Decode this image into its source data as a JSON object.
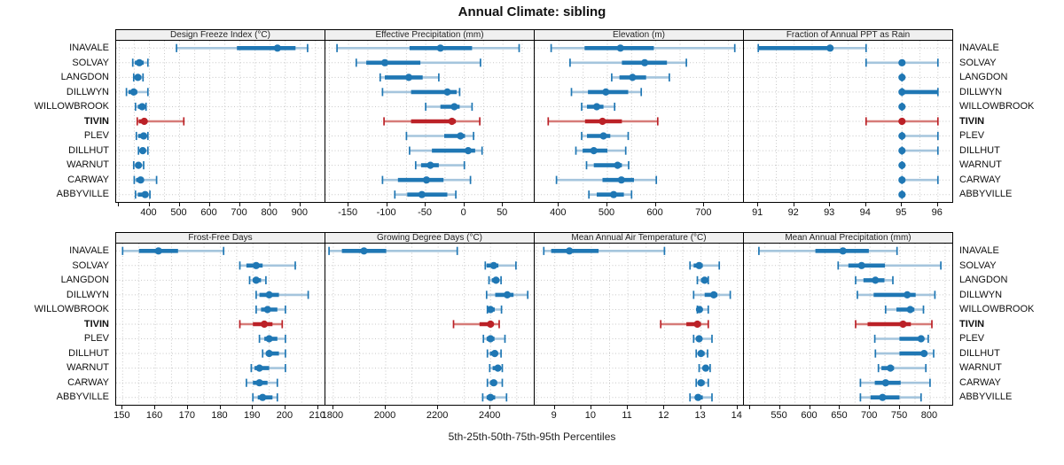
{
  "title": "Annual Climate: sibling",
  "caption": "5th-25th-50th-75th-95th Percentiles",
  "highlight_site": "TIVIN",
  "sites": [
    "INAVALE",
    "SOLVAY",
    "LANGDON",
    "DILLWYN",
    "WILLOWBROOK",
    "TIVIN",
    "PLEV",
    "DILLHUT",
    "WARNUT",
    "CARWAY",
    "ABBYVILLE"
  ],
  "colors": {
    "blue": "#1f77b4",
    "blue_light": "#a5c5dd",
    "red": "#bb2127",
    "red_light": "#d67b78",
    "grid": "#c8c8c8",
    "header_bg": "#f0f0f0",
    "border": "#000000"
  },
  "chart_data": [
    {
      "type": "dot-whisker",
      "panel": "Design Freeze Index (°C)",
      "percentiles": [
        5,
        25,
        50,
        75,
        95
      ],
      "xlim": [
        290,
        980
      ],
      "tick_step": 100,
      "minor_step": 50,
      "labeled_ticks": [
        400,
        500,
        600,
        700,
        800,
        900
      ],
      "series": {
        "INAVALE": [
          490,
          690,
          824,
          884,
          924
        ],
        "SOLVAY": [
          345,
          352,
          367,
          381,
          395
        ],
        "LANGDON": [
          348,
          352,
          362,
          373,
          379
        ],
        "DILLWYN": [
          324,
          331,
          348,
          360,
          395
        ],
        "WILLOWBROOK": [
          354,
          362,
          376,
          386,
          389
        ],
        "TIVIN": [
          360,
          365,
          383,
          390,
          514
        ],
        "PLEV": [
          357,
          363,
          381,
          388,
          395
        ],
        "DILLHUT": [
          364,
          369,
          378,
          386,
          395
        ],
        "WARNUT": [
          348,
          353,
          364,
          372,
          381
        ],
        "CARWAY": [
          350,
          356,
          371,
          380,
          424
        ],
        "ABBYVILLE": [
          354,
          362,
          386,
          392,
          402
        ]
      }
    },
    {
      "type": "dot-whisker",
      "panel": "Effective Precipitation (mm)",
      "percentiles": [
        5,
        25,
        50,
        75,
        95
      ],
      "xlim": [
        -180,
        90
      ],
      "tick_step": 50,
      "minor_step": 25,
      "labeled_ticks": [
        -150,
        -100,
        -50,
        0,
        50
      ],
      "series": {
        "INAVALE": [
          -165,
          -71,
          -31,
          10,
          71
        ],
        "SOLVAY": [
          -140,
          -127,
          -103,
          -57,
          21
        ],
        "LANGDON": [
          -109,
          -103,
          -72,
          -54,
          -33
        ],
        "DILLWYN": [
          -106,
          -69,
          -22,
          -10,
          -6
        ],
        "WILLOWBROOK": [
          -50,
          -31,
          -13,
          -6,
          10
        ],
        "TIVIN": [
          -104,
          -69,
          -16,
          -11,
          20
        ],
        "PLEV": [
          -75,
          -26,
          -5,
          1,
          12
        ],
        "DILLHUT": [
          -71,
          -42,
          5,
          14,
          23
        ],
        "WARNUT": [
          -63,
          -56,
          -44,
          -33,
          0
        ],
        "CARWAY": [
          -106,
          -86,
          -49,
          -27,
          8
        ],
        "ABBYVILLE": [
          -90,
          -74,
          -55,
          -22,
          -11
        ]
      }
    },
    {
      "type": "dot-whisker",
      "panel": "Elevation (m)",
      "percentiles": [
        5,
        25,
        50,
        75,
        95
      ],
      "xlim": [
        350,
        780
      ],
      "tick_step": 100,
      "minor_step": 50,
      "labeled_ticks": [
        400,
        500,
        600,
        700
      ],
      "series": {
        "INAVALE": [
          384,
          453,
          527,
          596,
          763
        ],
        "SOLVAY": [
          423,
          530,
          577,
          623,
          663
        ],
        "LANGDON": [
          509,
          525,
          552,
          580,
          628
        ],
        "DILLWYN": [
          426,
          460,
          497,
          543,
          570
        ],
        "WILLOWBROOK": [
          447,
          458,
          478,
          492,
          515
        ],
        "TIVIN": [
          378,
          454,
          490,
          530,
          604
        ],
        "PLEV": [
          447,
          458,
          492,
          506,
          543
        ],
        "DILLHUT": [
          435,
          449,
          472,
          500,
          538
        ],
        "WARNUT": [
          457,
          472,
          521,
          530,
          544
        ],
        "CARWAY": [
          395,
          490,
          529,
          555,
          601
        ],
        "ABBYVILLE": [
          462,
          478,
          513,
          534,
          550
        ]
      }
    },
    {
      "type": "dot-whisker",
      "panel": "Fraction of Annual PPT as Rain",
      "percentiles": [
        5,
        25,
        50,
        75,
        95
      ],
      "xlim": [
        90.6,
        96.4
      ],
      "tick_step": 1,
      "minor_step": 0.5,
      "labeled_ticks": [
        91,
        92,
        93,
        94,
        95,
        96
      ],
      "series": {
        "INAVALE": [
          91,
          91,
          93,
          93,
          94
        ],
        "SOLVAY": [
          94,
          95,
          95,
          95,
          96
        ],
        "LANGDON": [
          95,
          95,
          95,
          95,
          95
        ],
        "DILLWYN": [
          95,
          95,
          95,
          96,
          96
        ],
        "WILLOWBROOK": [
          95,
          95,
          95,
          95,
          95
        ],
        "TIVIN": [
          94,
          95,
          95,
          95,
          96
        ],
        "PLEV": [
          95,
          95,
          95,
          95,
          96
        ],
        "DILLHUT": [
          95,
          95,
          95,
          95,
          96
        ],
        "WARNUT": [
          95,
          95,
          95,
          95,
          95
        ],
        "CARWAY": [
          95,
          95,
          95,
          95,
          96
        ],
        "ABBYVILLE": [
          95,
          95,
          95,
          95,
          95
        ]
      }
    },
    {
      "type": "dot-whisker",
      "panel": "Frost-Free Days",
      "percentiles": [
        5,
        25,
        50,
        75,
        95
      ],
      "xlim": [
        148,
        212
      ],
      "tick_step": 10,
      "minor_step": 5,
      "labeled_ticks": [
        150,
        160,
        170,
        180,
        190,
        200,
        210
      ],
      "series": {
        "INAVALE": [
          150,
          155,
          161,
          167,
          181
        ],
        "SOLVAY": [
          186,
          188,
          191,
          193,
          203
        ],
        "LANGDON": [
          189,
          190,
          191,
          192.5,
          194
        ],
        "DILLWYN": [
          191,
          192,
          195,
          198,
          207
        ],
        "WILLOWBROOK": [
          191,
          192.5,
          194.5,
          197.5,
          200
        ],
        "TIVIN": [
          186,
          190,
          193.5,
          196,
          199
        ],
        "PLEV": [
          192,
          193.5,
          195,
          197.5,
          200
        ],
        "DILLHUT": [
          193,
          194,
          195,
          198,
          200
        ],
        "WARNUT": [
          189.5,
          190.5,
          192,
          195,
          200
        ],
        "CARWAY": [
          188,
          190,
          192,
          194.5,
          197.5
        ],
        "ABBYVILLE": [
          190,
          191.5,
          193,
          196,
          197.5
        ]
      }
    },
    {
      "type": "dot-whisker",
      "panel": "Growing Degree Days (°C)",
      "percentiles": [
        5,
        25,
        50,
        75,
        95
      ],
      "xlim": [
        1770,
        2565
      ],
      "tick_step": 200,
      "minor_step": 100,
      "labeled_ticks": [
        1800,
        2000,
        2200,
        2400
      ],
      "series": {
        "INAVALE": [
          1784,
          1833,
          1917,
          2002,
          2273
        ],
        "SOLVAY": [
          2380,
          2385,
          2412,
          2430,
          2497
        ],
        "LANGDON": [
          2394,
          2405,
          2421,
          2432,
          2440
        ],
        "DILLWYN": [
          2385,
          2418,
          2464,
          2488,
          2542
        ],
        "WILLOWBROOK": [
          2388,
          2392,
          2400,
          2416,
          2442
        ],
        "TIVIN": [
          2259,
          2358,
          2400,
          2412,
          2433
        ],
        "PLEV": [
          2373,
          2385,
          2400,
          2415,
          2455
        ],
        "DILLHUT": [
          2388,
          2398,
          2416,
          2428,
          2440
        ],
        "WARNUT": [
          2397,
          2408,
          2428,
          2438,
          2445
        ],
        "CARWAY": [
          2388,
          2398,
          2412,
          2425,
          2445
        ],
        "ABBYVILLE": [
          2370,
          2385,
          2400,
          2418,
          2461
        ]
      }
    },
    {
      "type": "dot-whisker",
      "panel": "Mean Annual Air Temperature (°C)",
      "percentiles": [
        5,
        25,
        50,
        75,
        95
      ],
      "xlim": [
        8.45,
        14.15
      ],
      "tick_step": 1,
      "minor_step": 0.5,
      "labeled_ticks": [
        9,
        10,
        11,
        12,
        13,
        14
      ],
      "series": {
        "INAVALE": [
          8.7,
          8.9,
          9.4,
          10.2,
          12.0
        ],
        "SOLVAY": [
          12.7,
          12.8,
          12.95,
          13.05,
          13.5
        ],
        "LANGDON": [
          12.9,
          13.0,
          13.1,
          13.15,
          13.2
        ],
        "DILLWYN": [
          12.8,
          13.1,
          13.35,
          13.45,
          13.8
        ],
        "WILLOWBROOK": [
          12.9,
          12.93,
          12.96,
          13.0,
          13.2
        ],
        "TIVIN": [
          11.9,
          12.6,
          12.9,
          13.0,
          13.2
        ],
        "PLEV": [
          12.8,
          12.9,
          12.95,
          13.0,
          13.3
        ],
        "DILLHUT": [
          12.87,
          12.95,
          13.0,
          13.1,
          13.18
        ],
        "WARNUT": [
          12.95,
          13.05,
          13.13,
          13.18,
          13.25
        ],
        "CARWAY": [
          12.87,
          12.95,
          13.0,
          13.1,
          13.2
        ],
        "ABBYVILLE": [
          12.7,
          12.85,
          12.92,
          13.05,
          13.3
        ]
      }
    },
    {
      "type": "dot-whisker",
      "panel": "Mean Annual Precipitation (mm)",
      "percentiles": [
        5,
        25,
        50,
        75,
        95
      ],
      "xlim": [
        490,
        837
      ],
      "tick_step": 50,
      "minor_step": 25,
      "labeled_ticks": [
        550,
        600,
        650,
        700,
        750,
        800
      ],
      "series": {
        "INAVALE": [
          515,
          609,
          655,
          698,
          745
        ],
        "SOLVAY": [
          647,
          664,
          686,
          725,
          818
        ],
        "LANGDON": [
          676,
          689,
          709,
          724,
          738
        ],
        "DILLWYN": [
          679,
          706,
          762,
          776,
          808
        ],
        "WILLOWBROOK": [
          726,
          744,
          767,
          774,
          789
        ],
        "TIVIN": [
          676,
          696,
          755,
          768,
          803
        ],
        "PLEV": [
          708,
          749,
          785,
          790,
          797
        ],
        "DILLHUT": [
          709,
          749,
          790,
          795,
          806
        ],
        "WARNUT": [
          714,
          719,
          734,
          740,
          793
        ],
        "CARWAY": [
          684,
          708,
          726,
          751,
          800
        ],
        "ABBYVILLE": [
          684,
          701,
          721,
          749,
          785
        ]
      }
    }
  ]
}
